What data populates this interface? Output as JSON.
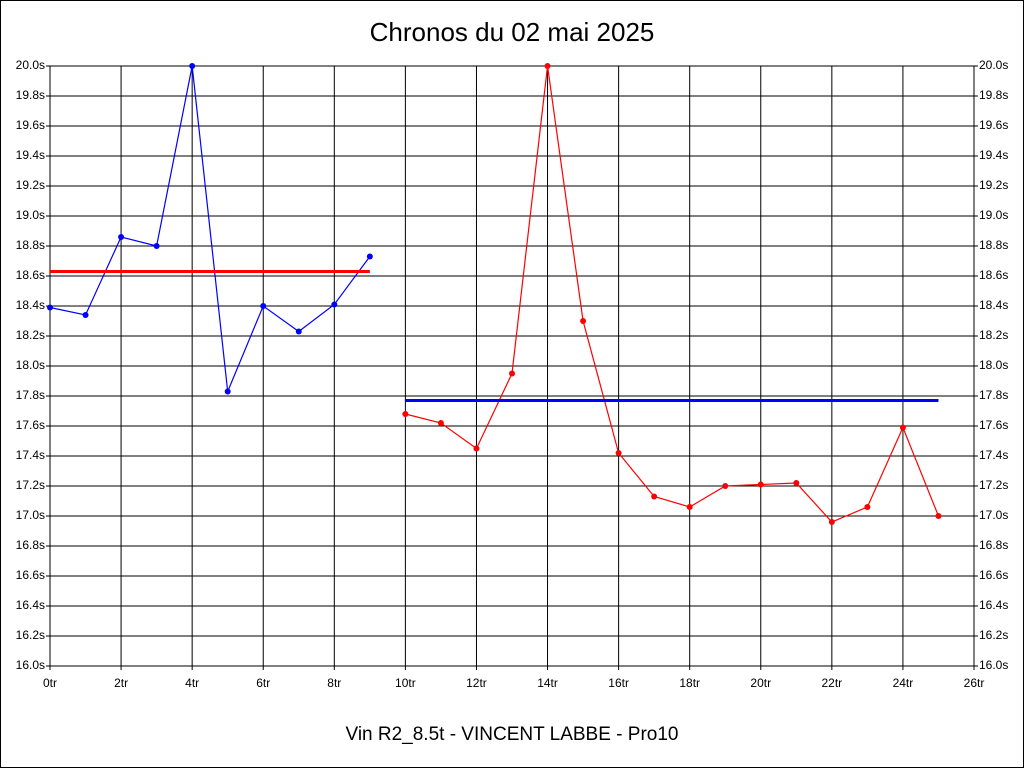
{
  "chart_data": {
    "type": "line",
    "title": "Chronos du 02 mai 2025",
    "xlabel": "Vin R2_8.5t - VINCENT LABBE - Pro10",
    "xlim": [
      0,
      26
    ],
    "xticks": [
      {
        "value": 0,
        "label": "0tr"
      },
      {
        "value": 2,
        "label": "2tr"
      },
      {
        "value": 4,
        "label": "4tr"
      },
      {
        "value": 6,
        "label": "6tr"
      },
      {
        "value": 8,
        "label": "8tr"
      },
      {
        "value": 10,
        "label": "10tr"
      },
      {
        "value": 12,
        "label": "12tr"
      },
      {
        "value": 14,
        "label": "14tr"
      },
      {
        "value": 16,
        "label": "16tr"
      },
      {
        "value": 18,
        "label": "18tr"
      },
      {
        "value": 20,
        "label": "20tr"
      },
      {
        "value": 22,
        "label": "22tr"
      },
      {
        "value": 24,
        "label": "24tr"
      },
      {
        "value": 26,
        "label": "26tr"
      }
    ],
    "ylim": [
      16.0,
      20.0
    ],
    "yticks": [
      {
        "value": 20.0,
        "label": "20.0s"
      },
      {
        "value": 19.8,
        "label": "19.8s"
      },
      {
        "value": 19.6,
        "label": "19.6s"
      },
      {
        "value": 19.4,
        "label": "19.4s"
      },
      {
        "value": 19.2,
        "label": "19.2s"
      },
      {
        "value": 19.0,
        "label": "19.0s"
      },
      {
        "value": 18.8,
        "label": "18.8s"
      },
      {
        "value": 18.6,
        "label": "18.6s"
      },
      {
        "value": 18.4,
        "label": "18.4s"
      },
      {
        "value": 18.2,
        "label": "18.2s"
      },
      {
        "value": 18.0,
        "label": "18.0s"
      },
      {
        "value": 17.8,
        "label": "17.8s"
      },
      {
        "value": 17.6,
        "label": "17.6s"
      },
      {
        "value": 17.4,
        "label": "17.4s"
      },
      {
        "value": 17.2,
        "label": "17.2s"
      },
      {
        "value": 17.0,
        "label": "17.0s"
      },
      {
        "value": 16.8,
        "label": "16.8s"
      },
      {
        "value": 16.6,
        "label": "16.6s"
      },
      {
        "value": 16.4,
        "label": "16.4s"
      },
      {
        "value": 16.2,
        "label": "16.2s"
      },
      {
        "value": 16.0,
        "label": "16.0s"
      }
    ],
    "grid": true,
    "series": [
      {
        "color": "#0000ff",
        "markers": true,
        "x": [
          0,
          1,
          2,
          3,
          4,
          5,
          6,
          7,
          8,
          9
        ],
        "values": [
          18.39,
          18.34,
          18.86,
          18.8,
          20.0,
          17.83,
          18.4,
          18.23,
          18.41,
          18.73
        ]
      },
      {
        "color": "#ff0000",
        "markers": false,
        "x": [
          0,
          9
        ],
        "values": [
          18.63,
          18.63
        ]
      },
      {
        "color": "#ff0000",
        "markers": true,
        "x": [
          10,
          11,
          12,
          13,
          14,
          15,
          16,
          17,
          18,
          19,
          20,
          21,
          22,
          23,
          24,
          25
        ],
        "values": [
          17.68,
          17.62,
          17.45,
          17.95,
          20.0,
          18.3,
          17.42,
          17.13,
          17.06,
          17.2,
          17.21,
          17.22,
          16.96,
          17.06,
          17.59,
          17.0
        ]
      },
      {
        "color": "#0000ff",
        "markers": false,
        "x": [
          10,
          25
        ],
        "values": [
          17.77,
          17.77
        ]
      }
    ]
  }
}
